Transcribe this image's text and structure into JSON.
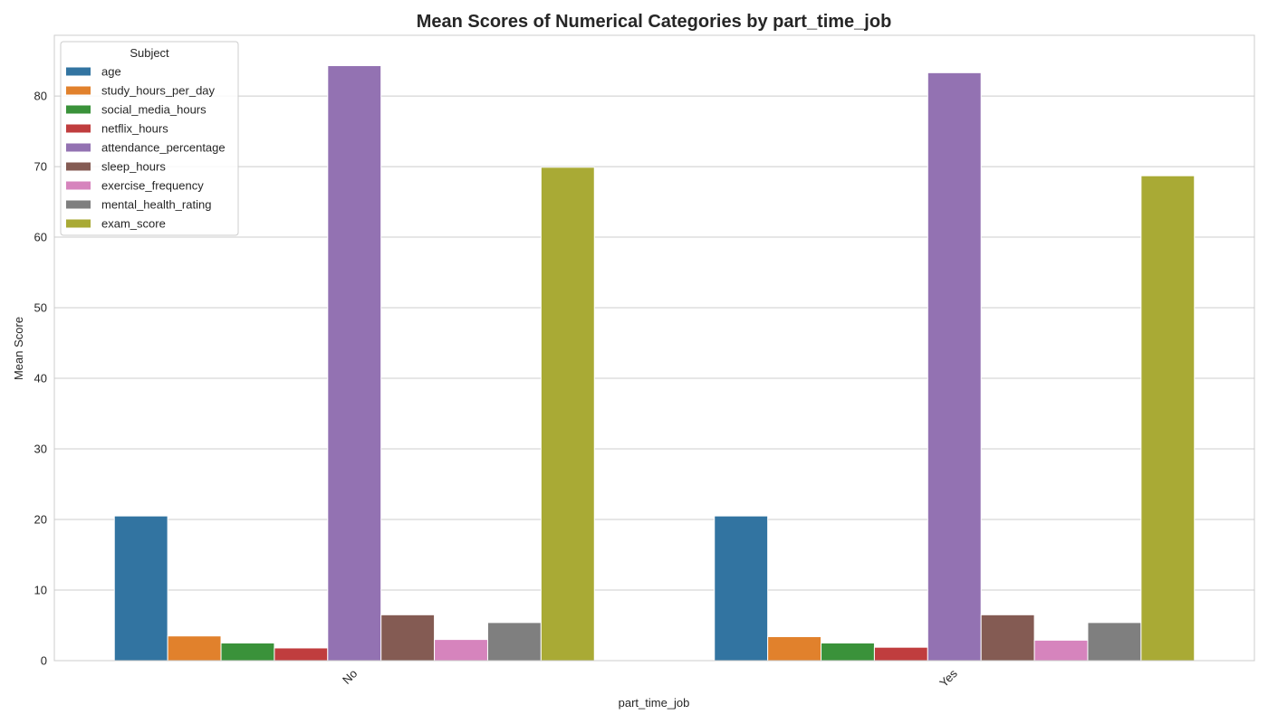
{
  "chart_data": {
    "type": "bar",
    "title": "Mean Scores of Numerical Categories by part_time_job",
    "xlabel": "part_time_job",
    "ylabel": "Mean Score",
    "categories": [
      "No",
      "Yes"
    ],
    "ylim": [
      0,
      88.6
    ],
    "yticks": [
      0,
      10,
      20,
      30,
      40,
      50,
      60,
      70,
      80
    ],
    "grid": true,
    "legend": {
      "title": "Subject",
      "placement": "top-left"
    },
    "series": [
      {
        "name": "age",
        "color": "#3274a1",
        "values": [
          20.5,
          20.5
        ]
      },
      {
        "name": "study_hours_per_day",
        "color": "#e1812c",
        "values": [
          3.5,
          3.4
        ]
      },
      {
        "name": "social_media_hours",
        "color": "#3a923a",
        "values": [
          2.5,
          2.5
        ]
      },
      {
        "name": "netflix_hours",
        "color": "#c03d3e",
        "values": [
          1.8,
          1.9
        ]
      },
      {
        "name": "attendance_percentage",
        "color": "#9372b2",
        "values": [
          84.3,
          83.3
        ]
      },
      {
        "name": "sleep_hours",
        "color": "#845b53",
        "values": [
          6.5,
          6.5
        ]
      },
      {
        "name": "exercise_frequency",
        "color": "#d684bd",
        "values": [
          3.0,
          2.9
        ]
      },
      {
        "name": "mental_health_rating",
        "color": "#7f7f7f",
        "values": [
          5.4,
          5.4
        ]
      },
      {
        "name": "exam_score",
        "color": "#a9aa35",
        "values": [
          69.9,
          68.7
        ]
      }
    ]
  }
}
